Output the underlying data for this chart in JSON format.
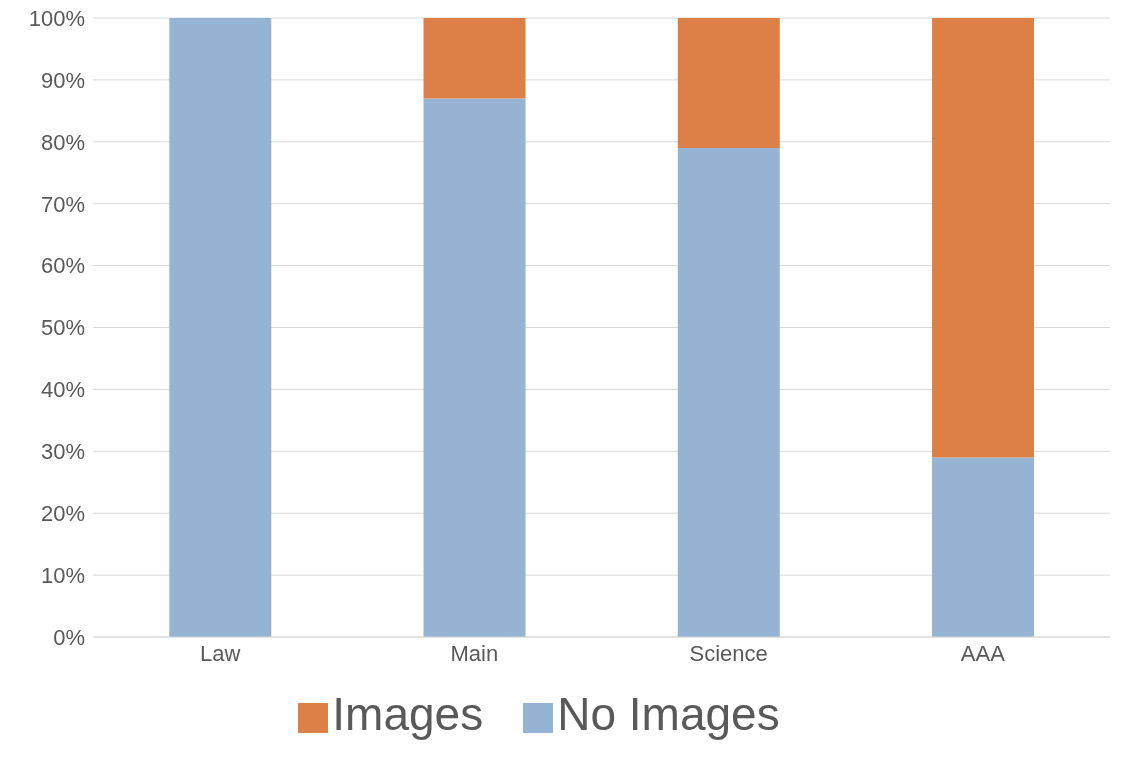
{
  "chart_data": {
    "type": "bar",
    "stacked": true,
    "categories": [
      "Law",
      "Main",
      "Science",
      "AAA"
    ],
    "series": [
      {
        "name": "No Images",
        "color": "#95b3d3",
        "values": [
          100,
          87,
          79,
          29
        ]
      },
      {
        "name": "Images",
        "color": "#dd8047",
        "values": [
          0,
          13,
          21,
          71
        ]
      }
    ],
    "ylim": [
      0,
      100
    ],
    "yticks": [
      {
        "value": 0,
        "label": "0%"
      },
      {
        "value": 10,
        "label": "10%"
      },
      {
        "value": 20,
        "label": "20%"
      },
      {
        "value": 30,
        "label": "30%"
      },
      {
        "value": 40,
        "label": "40%"
      },
      {
        "value": 50,
        "label": "50%"
      },
      {
        "value": 60,
        "label": "60%"
      },
      {
        "value": 70,
        "label": "70%"
      },
      {
        "value": 80,
        "label": "80%"
      },
      {
        "value": 90,
        "label": "90%"
      },
      {
        "value": 100,
        "label": "100%"
      }
    ],
    "grid": "y",
    "legend": "bottom"
  }
}
